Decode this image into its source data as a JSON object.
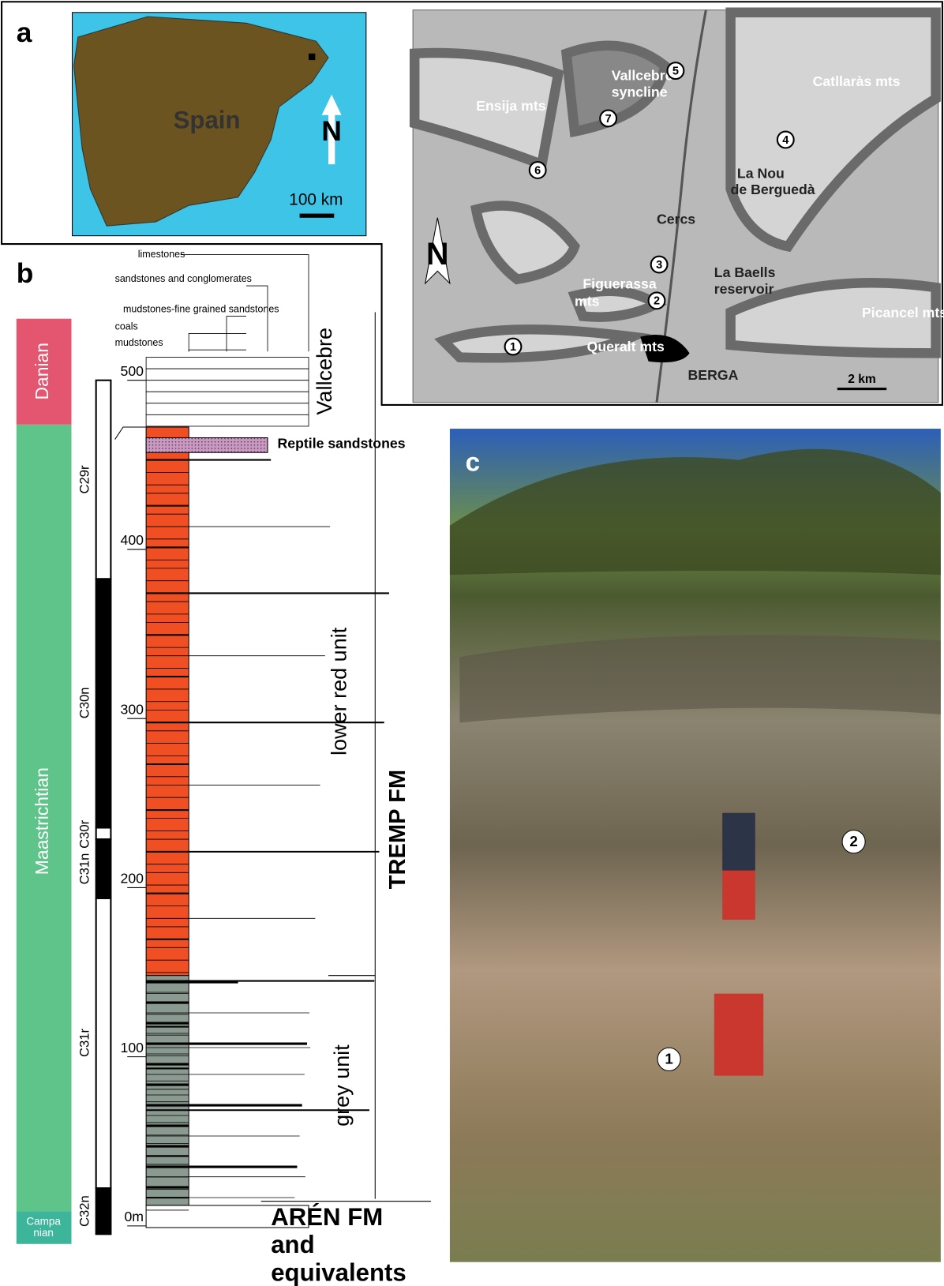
{
  "panel_a": {
    "label": "a",
    "country": "Spain",
    "north": "N",
    "scale": "100 km"
  },
  "panel_b": {
    "label": "b",
    "legend": [
      "limestones",
      "sandstones and conglomerates",
      "mudstones-fine grained sandstones",
      "coals",
      "mudstones"
    ],
    "depth_ticks": [
      "500",
      "400",
      "300",
      "200",
      "100",
      "0m"
    ],
    "stages": {
      "danian": "Danian",
      "maastrichtian": "Maastrichtian",
      "campanian": [
        "Campa",
        "nian"
      ]
    },
    "chrons": [
      "C29r",
      "C30n",
      "C30r",
      "C31n",
      "C31r",
      "C32n"
    ],
    "units": {
      "vallcebre": "Vallcebre",
      "reptile": "Reptile sandstones",
      "lower_red": "lower red unit",
      "grey": "grey unit",
      "tremp": "TREMP FM",
      "aren": [
        "ARÉN FM",
        "and",
        "equivalents"
      ]
    }
  },
  "map": {
    "labels": [
      "Ensija mts",
      "Vallcebre",
      "syncline",
      "Catllaràs mts",
      "La Nou",
      "de Berguedà",
      "Cercs",
      "La Baells",
      "reservoir",
      "Figuerassa",
      "mts",
      "Picancel mts",
      "Queralt mts",
      "BERGA"
    ],
    "sites": [
      "1",
      "2",
      "3",
      "4",
      "5",
      "6",
      "7"
    ],
    "north": "N",
    "scale": "2 km"
  },
  "panel_c": {
    "label": "c",
    "markers": [
      "1",
      "2"
    ]
  }
}
